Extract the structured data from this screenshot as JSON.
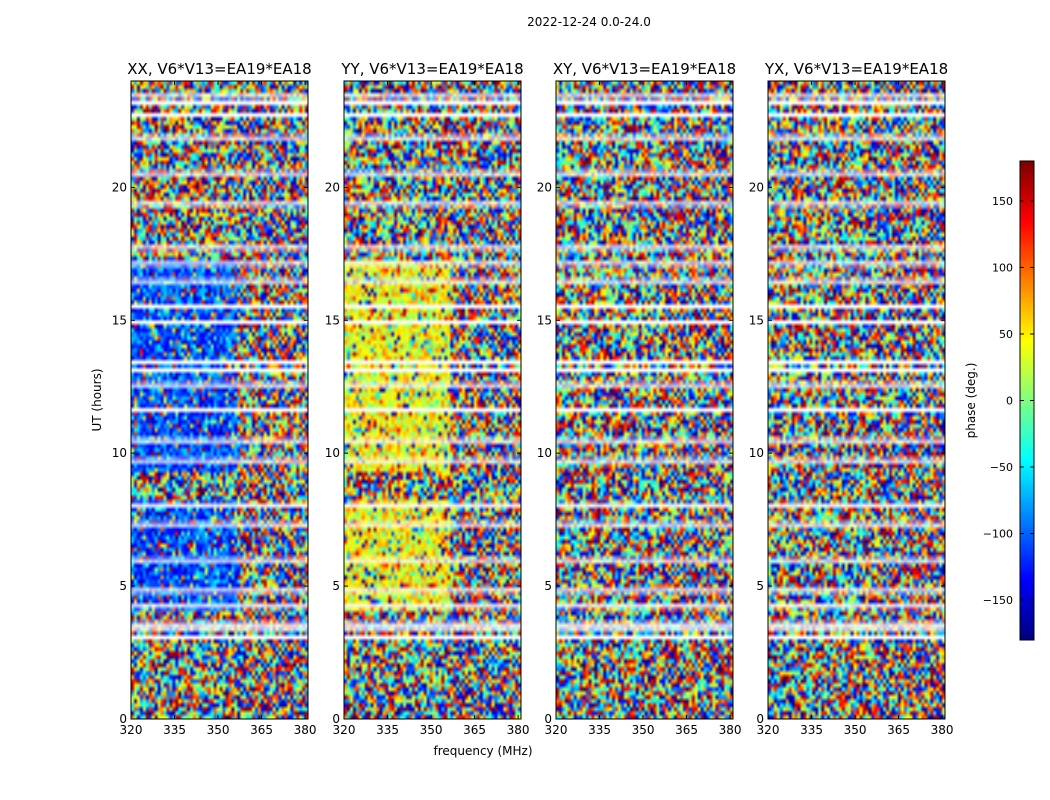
{
  "figure_title": "2022-12-24 0.0-24.0",
  "colors": {
    "blank_rows": "#ffffff",
    "axis": "#000000"
  },
  "chart_data": [
    {
      "type": "heatmap",
      "title": "XX, V6*V13=EA19*EA18",
      "ylabel": "UT (hours)",
      "xlabel": "",
      "xlim": [
        320,
        381
      ],
      "ylim": [
        0,
        24
      ],
      "xticks": [
        320,
        335,
        350,
        365,
        380
      ],
      "yticks": [
        0,
        5,
        10,
        15,
        20
      ],
      "style": "blue_bias"
    },
    {
      "type": "heatmap",
      "title": "YY, V6*V13=EA19*EA18",
      "ylabel": "",
      "xlabel": "frequency (MHz)",
      "xlim": [
        320,
        381
      ],
      "ylim": [
        0,
        24
      ],
      "xticks": [
        320,
        335,
        350,
        365,
        380
      ],
      "yticks": [
        0,
        5,
        10,
        15,
        20
      ],
      "style": "yellow_bias"
    },
    {
      "type": "heatmap",
      "title": "XY, V6*V13=EA19*EA18",
      "ylabel": "",
      "xlabel": "",
      "xlim": [
        320,
        381
      ],
      "ylim": [
        0,
        24
      ],
      "xticks": [
        320,
        335,
        350,
        365,
        380
      ],
      "yticks": [
        0,
        5,
        10,
        15,
        20
      ],
      "style": "noise"
    },
    {
      "type": "heatmap",
      "title": "YX, V6*V13=EA19*EA18",
      "ylabel": "",
      "xlabel": "",
      "xlim": [
        320,
        381
      ],
      "ylim": [
        0,
        24
      ],
      "xticks": [
        320,
        335,
        350,
        365,
        380
      ],
      "yticks": [
        0,
        5,
        10,
        15,
        20
      ],
      "style": "noise"
    }
  ],
  "colorbar": {
    "label": "phase (deg.)",
    "range": [
      -180,
      180
    ],
    "ticks": [
      -150,
      -100,
      -50,
      0,
      50,
      100,
      150
    ],
    "tick_labels": [
      "−150",
      "−100",
      "−50",
      "0",
      "50",
      "100",
      "150"
    ],
    "colormap": "jet"
  },
  "flagged_ut_intervals": [
    [
      3.05,
      3.15
    ],
    [
      3.4,
      3.5
    ],
    [
      3.6,
      3.65
    ],
    [
      4.25,
      4.32
    ],
    [
      4.85,
      4.9
    ],
    [
      5.95,
      6.05
    ],
    [
      7.3,
      7.4
    ],
    [
      8.0,
      8.12
    ],
    [
      9.7,
      9.8
    ],
    [
      10.45,
      10.55
    ],
    [
      11.55,
      11.7
    ],
    [
      12.55,
      12.65
    ],
    [
      13.1,
      13.2
    ],
    [
      13.45,
      13.5
    ],
    [
      14.9,
      15.0
    ],
    [
      15.5,
      15.6
    ],
    [
      16.45,
      16.55
    ],
    [
      17.1,
      17.2
    ],
    [
      17.7,
      17.8
    ],
    [
      19.35,
      19.45
    ],
    [
      20.45,
      20.6
    ],
    [
      21.85,
      21.95
    ],
    [
      22.7,
      22.8
    ],
    [
      23.1,
      23.25
    ],
    [
      23.45,
      23.5
    ]
  ]
}
